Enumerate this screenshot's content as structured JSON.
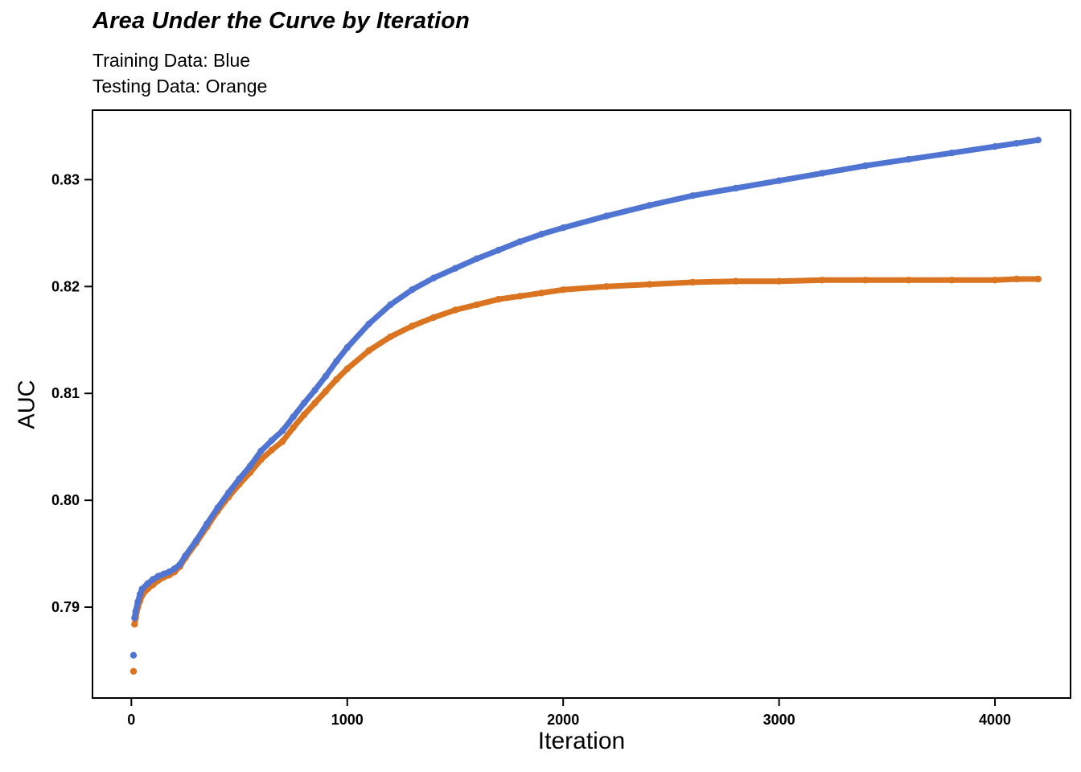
{
  "page": {
    "background": "#ffffff"
  },
  "header": {
    "title": "Area Under the Curve by Iteration",
    "subtitle_line1": "Training Data: Blue",
    "subtitle_line2": "Testing Data: Orange"
  },
  "chart_data": {
    "type": "scatter",
    "title": "Area Under the Curve by Iteration",
    "subtitle": [
      "Training Data: Blue",
      "Testing Data: Orange"
    ],
    "xlabel": "Iteration",
    "ylabel": "AUC",
    "xlim": [
      -180,
      4350
    ],
    "ylim": [
      0.7815,
      0.8365
    ],
    "x_ticks": [
      0,
      1000,
      2000,
      3000,
      4000
    ],
    "x_tick_labels": [
      "0",
      "1000",
      "2000",
      "3000",
      "4000"
    ],
    "y_ticks": [
      0.79,
      0.8,
      0.81,
      0.82,
      0.83
    ],
    "y_tick_labels": [
      "0.79",
      "0.80",
      "0.81",
      "0.82",
      "0.83"
    ],
    "grid": false,
    "legend_position": "none",
    "panel_border_color": "#000000",
    "x": [
      10,
      15,
      20,
      30,
      40,
      50,
      75,
      100,
      125,
      150,
      175,
      200,
      225,
      250,
      300,
      350,
      400,
      450,
      500,
      550,
      600,
      650,
      700,
      750,
      800,
      850,
      900,
      950,
      1000,
      1100,
      1200,
      1300,
      1400,
      1500,
      1600,
      1700,
      1800,
      1900,
      2000,
      2200,
      2400,
      2600,
      2800,
      3000,
      3200,
      3400,
      3600,
      3800,
      4000,
      4100,
      4200
    ],
    "series": [
      {
        "name": "Training Data",
        "color": "#5074D1",
        "y": [
          0.7855,
          0.789,
          0.7896,
          0.7905,
          0.7912,
          0.7917,
          0.7922,
          0.7926,
          0.7929,
          0.7931,
          0.7933,
          0.7936,
          0.794,
          0.7948,
          0.7962,
          0.7978,
          0.7993,
          0.8007,
          0.802,
          0.8032,
          0.8046,
          0.8056,
          0.8065,
          0.8078,
          0.8091,
          0.8103,
          0.8116,
          0.813,
          0.8143,
          0.8165,
          0.8183,
          0.8197,
          0.8208,
          0.8217,
          0.8226,
          0.8234,
          0.8242,
          0.8249,
          0.8255,
          0.8266,
          0.8276,
          0.8285,
          0.8292,
          0.8299,
          0.8306,
          0.8313,
          0.8319,
          0.8325,
          0.8331,
          0.8334,
          0.8337
        ]
      },
      {
        "name": "Testing Data",
        "color": "#DB7420",
        "y": [
          0.784,
          0.7884,
          0.789,
          0.79,
          0.7906,
          0.7911,
          0.7917,
          0.7921,
          0.7925,
          0.7928,
          0.793,
          0.7933,
          0.7938,
          0.7946,
          0.796,
          0.7975,
          0.799,
          0.8003,
          0.8015,
          0.8026,
          0.8038,
          0.8047,
          0.8055,
          0.8068,
          0.808,
          0.8091,
          0.8102,
          0.8113,
          0.8123,
          0.814,
          0.8153,
          0.8163,
          0.8171,
          0.8178,
          0.8183,
          0.8188,
          0.8191,
          0.8194,
          0.8197,
          0.82,
          0.8202,
          0.8204,
          0.8205,
          0.8205,
          0.8206,
          0.8206,
          0.8206,
          0.8206,
          0.8206,
          0.8207,
          0.8207
        ]
      }
    ]
  }
}
